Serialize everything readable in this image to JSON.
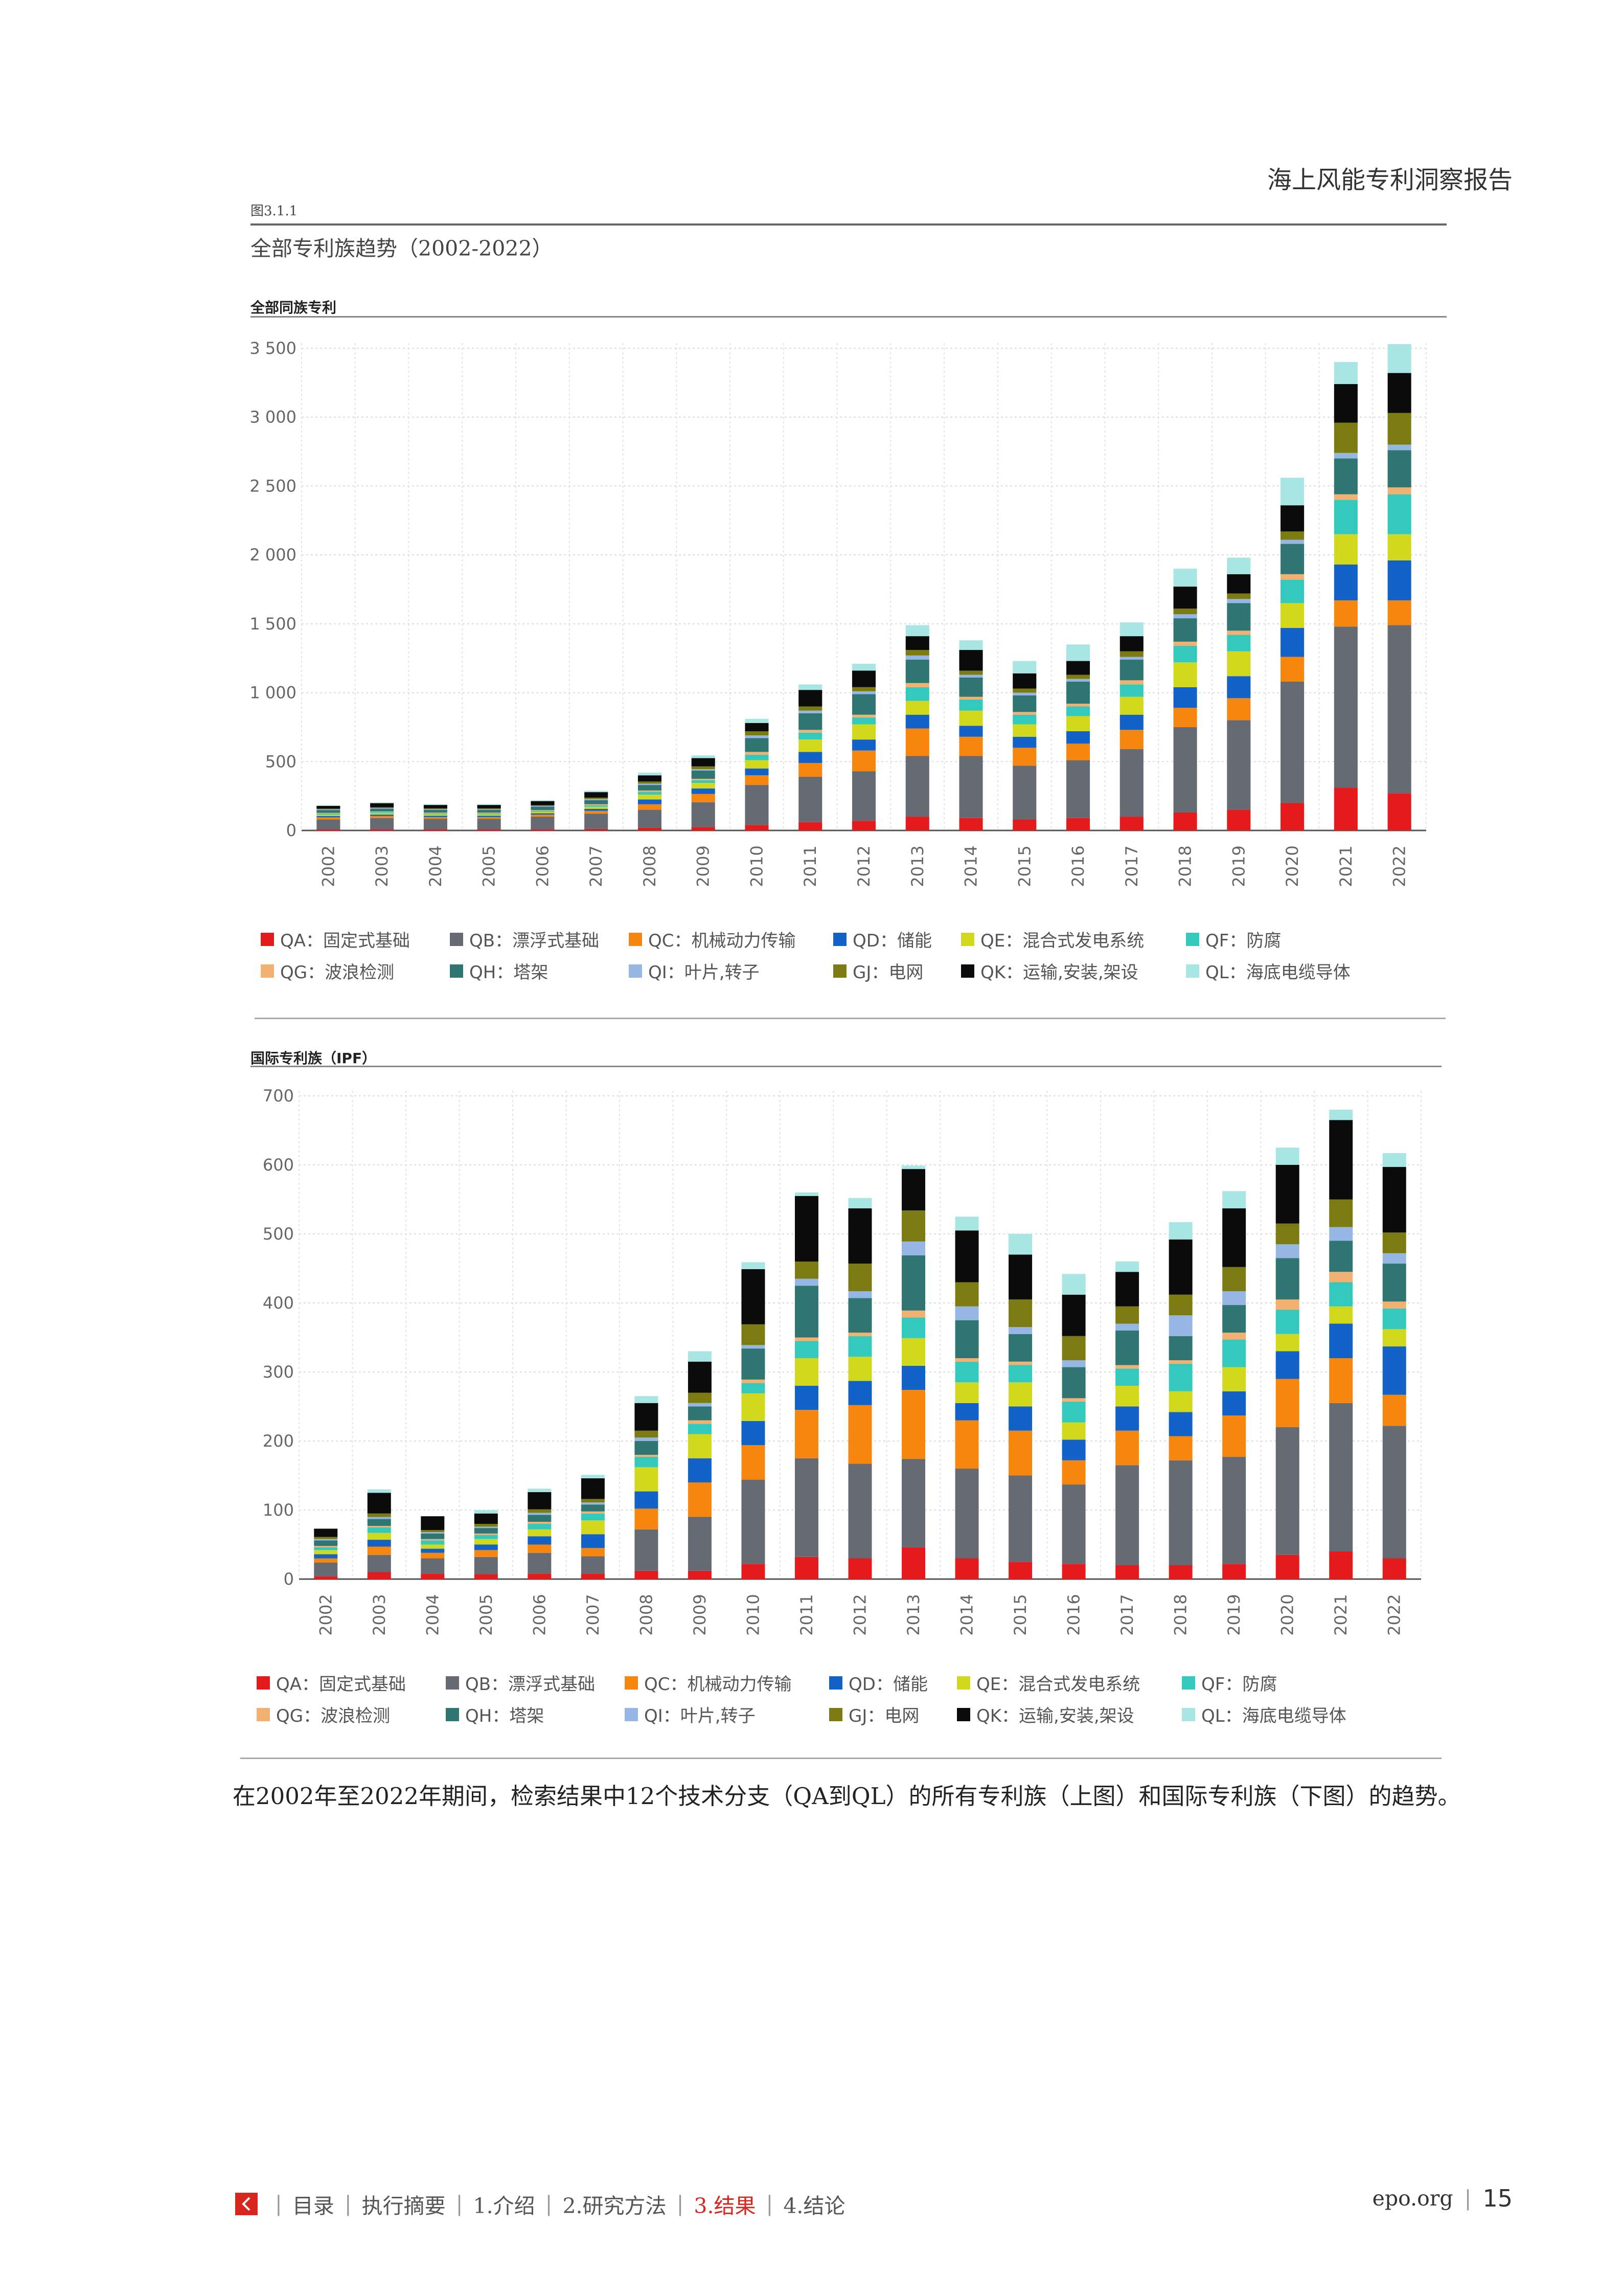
{
  "header": {
    "title": "海上风能专利洞察报告"
  },
  "figure": {
    "label": "图3.1.1",
    "title": "全部专利族趋势（2002-2022）"
  },
  "caption": "在2002年至2022年期间，检索结果中12个技术分支（QA到QL）的所有专利族（上图）和国际专利族（下图）的趋势。",
  "footer": {
    "nav": [
      "目录",
      "执行摘要",
      "1.介绍",
      "2.研究方法",
      "3.结果",
      "4.结论"
    ],
    "active": "3.结果",
    "site": "epo.org",
    "page": "15"
  },
  "legend": [
    {
      "code": "QA",
      "label": "QA：固定式基础",
      "color": "#e41a1c"
    },
    {
      "code": "QB",
      "label": "QB：漂浮式基础",
      "color": "#656a73"
    },
    {
      "code": "QC",
      "label": "QC：机械动力传输",
      "color": "#f7860f"
    },
    {
      "code": "QD",
      "label": "QD：储能",
      "color": "#1262c8"
    },
    {
      "code": "QE",
      "label": "QE：混合式发电系统",
      "color": "#d2d81b"
    },
    {
      "code": "QF",
      "label": "QF：防腐",
      "color": "#34c9bd"
    },
    {
      "code": "QG",
      "label": "QG：波浪检测",
      "color": "#f2b170"
    },
    {
      "code": "QH",
      "label": "QH：塔架",
      "color": "#2f7672"
    },
    {
      "code": "QI",
      "label": "QI：叶片,转子",
      "color": "#96b6e4"
    },
    {
      "code": "GJ",
      "label": "GJ：电网",
      "color": "#7b7b12"
    },
    {
      "code": "QK",
      "label": "QK：运输,安装,架设",
      "color": "#0b0b0b"
    },
    {
      "code": "QL",
      "label": "QL：海底电缆导体",
      "color": "#a8e6e4"
    }
  ],
  "chart_data": [
    {
      "type": "bar",
      "stacked": true,
      "title": "全部同族专利",
      "categories": [
        "2002",
        "2003",
        "2004",
        "2005",
        "2006",
        "2007",
        "2008",
        "2009",
        "2010",
        "2011",
        "2012",
        "2013",
        "2014",
        "2015",
        "2016",
        "2017",
        "2018",
        "2019",
        "2020",
        "2021",
        "2022"
      ],
      "ylim": [
        0,
        3500
      ],
      "yticks": [
        0,
        500,
        1000,
        1500,
        2000,
        2500,
        3000,
        3500
      ],
      "ytick_labels": [
        "0",
        "500",
        "1 000",
        "1 500",
        "2 000",
        "2 500",
        "3 000",
        "3 500"
      ],
      "grid": true,
      "series": [
        {
          "name": "QA：固定式基础",
          "values": [
            10,
            10,
            10,
            10,
            10,
            12,
            20,
            25,
            40,
            60,
            70,
            100,
            90,
            80,
            90,
            100,
            130,
            150,
            200,
            310,
            270
          ]
        },
        {
          "name": "QB：漂浮式基础",
          "values": [
            70,
            80,
            75,
            75,
            90,
            110,
            130,
            180,
            290,
            330,
            360,
            440,
            450,
            390,
            420,
            490,
            620,
            650,
            880,
            1170,
            1220
          ]
        },
        {
          "name": "QC：机械动力传输",
          "values": [
            15,
            15,
            12,
            12,
            15,
            20,
            40,
            60,
            70,
            100,
            150,
            200,
            140,
            130,
            120,
            140,
            140,
            160,
            180,
            190,
            180
          ]
        },
        {
          "name": "QD：储能",
          "values": [
            10,
            10,
            10,
            10,
            10,
            15,
            35,
            40,
            50,
            80,
            80,
            100,
            80,
            80,
            90,
            110,
            150,
            160,
            210,
            260,
            290
          ]
        },
        {
          "name": "QE：混合式发电系统",
          "values": [
            10,
            10,
            10,
            10,
            10,
            15,
            35,
            40,
            60,
            90,
            110,
            100,
            110,
            90,
            110,
            130,
            180,
            180,
            180,
            220,
            190
          ]
        },
        {
          "name": "QF：防腐",
          "values": [
            8,
            8,
            8,
            8,
            8,
            10,
            20,
            20,
            40,
            50,
            50,
            100,
            80,
            70,
            70,
            90,
            120,
            120,
            170,
            250,
            290
          ]
        },
        {
          "name": "QG：波浪检测",
          "values": [
            5,
            5,
            5,
            5,
            5,
            8,
            10,
            10,
            20,
            20,
            20,
            30,
            20,
            20,
            20,
            30,
            30,
            30,
            40,
            40,
            50
          ]
        },
        {
          "name": "QH：塔架",
          "values": [
            20,
            20,
            20,
            20,
            25,
            30,
            40,
            60,
            100,
            120,
            150,
            170,
            140,
            120,
            160,
            150,
            170,
            200,
            220,
            260,
            270
          ]
        },
        {
          "name": "QI：叶片,转子",
          "values": [
            5,
            5,
            5,
            5,
            5,
            8,
            10,
            10,
            20,
            20,
            20,
            30,
            20,
            20,
            20,
            20,
            30,
            30,
            30,
            40,
            40
          ]
        },
        {
          "name": "GJ：电网",
          "values": [
            5,
            5,
            5,
            5,
            5,
            10,
            15,
            20,
            30,
            30,
            30,
            40,
            30,
            30,
            30,
            40,
            40,
            40,
            60,
            220,
            230
          ]
        },
        {
          "name": "QK：运输,安装,架设",
          "values": [
            20,
            30,
            25,
            25,
            30,
            40,
            45,
            60,
            60,
            120,
            120,
            100,
            150,
            110,
            100,
            110,
            160,
            140,
            190,
            280,
            290
          ]
        },
        {
          "name": "QL：海底电缆导体",
          "values": [
            5,
            5,
            5,
            5,
            5,
            10,
            20,
            20,
            30,
            40,
            50,
            80,
            70,
            90,
            120,
            100,
            130,
            120,
            200,
            160,
            210
          ]
        }
      ]
    },
    {
      "type": "bar",
      "stacked": true,
      "title": "国际专利族（IPF）",
      "categories": [
        "2002",
        "2003",
        "2004",
        "2005",
        "2006",
        "2007",
        "2008",
        "2009",
        "2010",
        "2011",
        "2012",
        "2013",
        "2014",
        "2015",
        "2016",
        "2017",
        "2018",
        "2019",
        "2020",
        "2021",
        "2022"
      ],
      "ylim": [
        0,
        700
      ],
      "yticks": [
        0,
        100,
        200,
        300,
        400,
        500,
        600,
        700
      ],
      "ytick_labels": [
        "0",
        "100",
        "200",
        "300",
        "400",
        "500",
        "600",
        "700"
      ],
      "grid": true,
      "series": [
        {
          "name": "QA：固定式基础",
          "values": [
            4,
            10,
            8,
            7,
            8,
            8,
            12,
            12,
            22,
            32,
            30,
            46,
            30,
            25,
            22,
            20,
            20,
            22,
            35,
            40,
            30
          ]
        },
        {
          "name": "QB：漂浮式基础",
          "values": [
            20,
            25,
            22,
            25,
            30,
            25,
            60,
            78,
            122,
            143,
            137,
            128,
            130,
            125,
            115,
            145,
            152,
            155,
            185,
            215,
            192
          ]
        },
        {
          "name": "QC：机械动力传输",
          "values": [
            6,
            12,
            8,
            10,
            12,
            12,
            30,
            50,
            50,
            70,
            85,
            100,
            70,
            65,
            35,
            50,
            35,
            60,
            70,
            65,
            45
          ]
        },
        {
          "name": "QD：储能",
          "values": [
            6,
            10,
            6,
            8,
            12,
            20,
            25,
            35,
            35,
            35,
            35,
            35,
            25,
            35,
            30,
            35,
            35,
            35,
            40,
            50,
            70
          ]
        },
        {
          "name": "QE：混合式发电系统",
          "values": [
            6,
            10,
            6,
            8,
            10,
            20,
            35,
            35,
            40,
            40,
            35,
            40,
            30,
            35,
            25,
            30,
            30,
            35,
            25,
            25,
            25
          ]
        },
        {
          "name": "QF：防腐",
          "values": [
            4,
            8,
            6,
            6,
            8,
            10,
            15,
            15,
            15,
            25,
            30,
            30,
            30,
            25,
            30,
            25,
            40,
            40,
            35,
            35,
            30
          ]
        },
        {
          "name": "QG：波浪检测",
          "values": [
            2,
            2,
            2,
            2,
            3,
            3,
            3,
            5,
            5,
            5,
            5,
            10,
            5,
            5,
            5,
            5,
            5,
            10,
            15,
            15,
            10
          ]
        },
        {
          "name": "QH：塔架",
          "values": [
            8,
            10,
            8,
            8,
            10,
            10,
            20,
            20,
            45,
            75,
            50,
            80,
            55,
            40,
            45,
            50,
            35,
            40,
            60,
            45,
            55
          ]
        },
        {
          "name": "QI：叶片,转子",
          "values": [
            2,
            3,
            2,
            2,
            3,
            3,
            5,
            5,
            5,
            10,
            10,
            20,
            20,
            10,
            10,
            10,
            30,
            20,
            20,
            20,
            15
          ]
        },
        {
          "name": "GJ：电网",
          "values": [
            3,
            5,
            3,
            4,
            5,
            5,
            10,
            15,
            30,
            25,
            40,
            45,
            35,
            40,
            35,
            25,
            30,
            35,
            30,
            40,
            30
          ]
        },
        {
          "name": "QK：运输,安装,架设",
          "values": [
            12,
            30,
            20,
            15,
            25,
            30,
            40,
            45,
            80,
            95,
            80,
            60,
            75,
            65,
            60,
            50,
            80,
            85,
            85,
            115,
            95
          ]
        },
        {
          "name": "QL：海底电缆导体",
          "values": [
            0,
            5,
            0,
            5,
            5,
            5,
            10,
            15,
            10,
            5,
            15,
            5,
            20,
            30,
            30,
            15,
            25,
            25,
            25,
            15,
            20
          ]
        }
      ]
    }
  ]
}
